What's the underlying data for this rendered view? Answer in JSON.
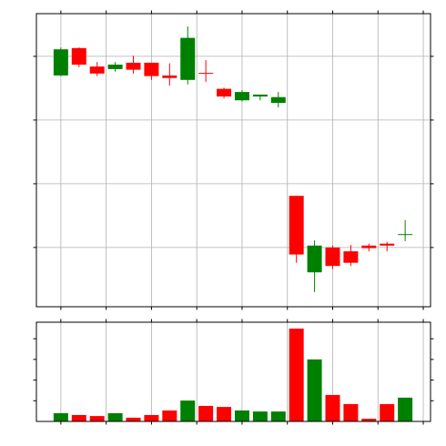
{
  "chart_data": [
    {
      "type": "candlestick",
      "x": [
        0,
        1,
        2,
        3,
        4,
        5,
        6,
        7,
        8,
        9,
        10,
        11,
        12,
        13,
        14,
        15,
        16,
        17,
        18,
        19
      ],
      "open": [
        370,
        413,
        384,
        380,
        390,
        390,
        370,
        363,
        374,
        349,
        331,
        337,
        327,
        181,
        61,
        100,
        94,
        103,
        106,
        120
      ],
      "high": [
        414,
        414,
        391,
        391,
        401,
        390,
        389,
        447,
        394,
        351,
        347,
        340,
        344,
        181,
        111,
        103,
        104,
        106,
        109,
        143
      ],
      "low": [
        369,
        383,
        369,
        376,
        373,
        363,
        354,
        356,
        360,
        334,
        329,
        331,
        320,
        76,
        30,
        66,
        71,
        94,
        94,
        110
      ],
      "close": [
        411,
        387,
        373,
        387,
        379,
        369,
        366,
        429,
        373,
        337,
        344,
        340,
        336,
        89,
        103,
        71,
        76,
        99,
        103,
        121
      ],
      "up_color": "green",
      "down_color": "red",
      "xlim": [
        -1.35,
        20.4
      ],
      "xticks": [
        0,
        2.5,
        5,
        7.5,
        10,
        12.5,
        15,
        17.5,
        20
      ],
      "ylim": [
        7,
        467
      ],
      "yticks": [
        100,
        200,
        300,
        400
      ],
      "grid": true
    },
    {
      "type": "bar",
      "x": [
        0,
        1,
        2,
        3,
        4,
        5,
        6,
        7,
        8,
        9,
        10,
        11,
        12,
        13,
        14,
        15,
        16,
        17,
        18,
        19
      ],
      "values": [
        40,
        31,
        26,
        40,
        18,
        31,
        53,
        101,
        75,
        70,
        53,
        48,
        48,
        449,
        300,
        128,
        84,
        13,
        84,
        115
      ],
      "colors": [
        "green",
        "red",
        "red",
        "green",
        "red",
        "red",
        "red",
        "green",
        "red",
        "red",
        "green",
        "green",
        "green",
        "red",
        "green",
        "red",
        "red",
        "red",
        "red",
        "green"
      ],
      "xlim": [
        -1.35,
        20.4
      ],
      "xticks": [
        0,
        2.5,
        5,
        7.5,
        10,
        12.5,
        15,
        17.5,
        20
      ],
      "ylim": [
        0,
        480
      ],
      "yticks": [
        100,
        200,
        300,
        400
      ],
      "grid": true
    }
  ]
}
